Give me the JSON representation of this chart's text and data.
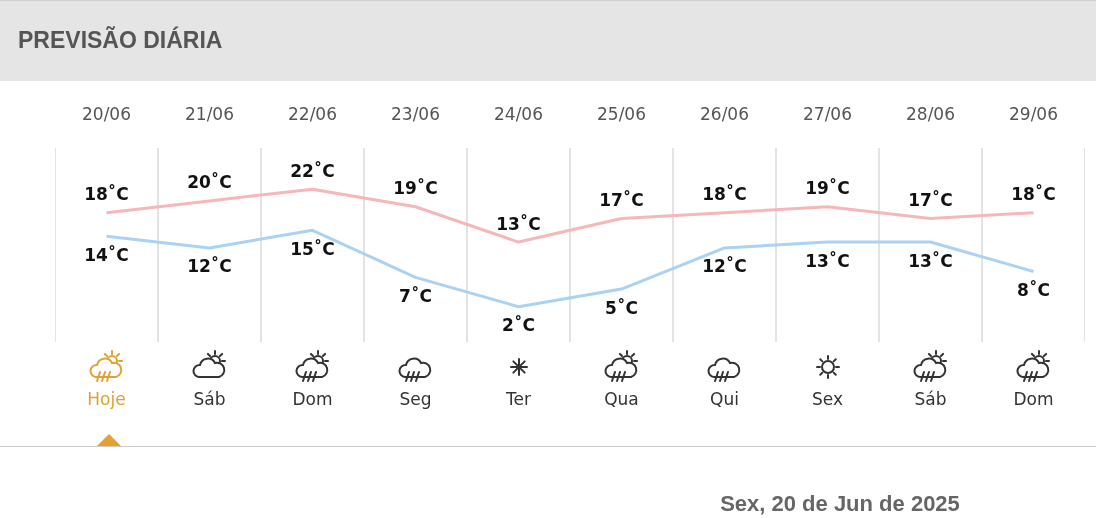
{
  "chart_data": {
    "type": "line",
    "title": "PREVISÃO DIÁRIA",
    "categories": [
      "20/06",
      "21/06",
      "22/06",
      "23/06",
      "24/06",
      "25/06",
      "26/06",
      "27/06",
      "28/06",
      "29/06"
    ],
    "series": [
      {
        "color": "#f7b6b8",
        "values": [
          18,
          20,
          22,
          19,
          13,
          17,
          18,
          19,
          17,
          18
        ],
        "value_labels": [
          "18˚C",
          "20˚C",
          "22˚C",
          "19˚C",
          "13˚C",
          "17˚C",
          "18˚C",
          "19˚C",
          "17˚C",
          "18˚C"
        ]
      },
      {
        "color": "#a9d2f5",
        "values": [
          14,
          12,
          15,
          7,
          2,
          5,
          12,
          13,
          13,
          8
        ],
        "value_labels": [
          "14˚C",
          "12˚C",
          "15˚C",
          "7˚C",
          "2˚C",
          "5˚C",
          "12˚C",
          "13˚C",
          "13˚C",
          "8˚C"
        ]
      }
    ],
    "grid": "x",
    "marker": "none",
    "annotations": [
      "Hoje",
      "Sáb",
      "Dom",
      "Seg",
      "Ter",
      "Qua",
      "Qui",
      "Sex",
      "Sáb",
      "Dom",
      "Sex, 20 de Jun de 2025"
    ]
  }
}
